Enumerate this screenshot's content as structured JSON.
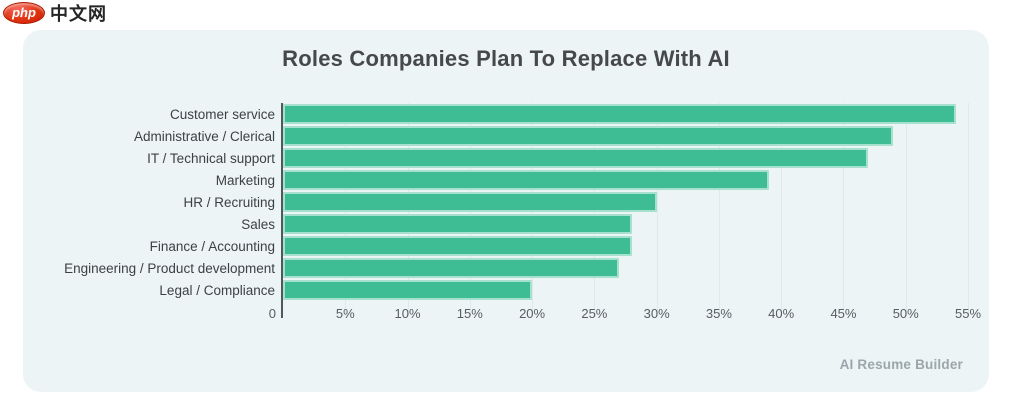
{
  "logo": {
    "badge": "php",
    "text": "中文网"
  },
  "chart_data": {
    "type": "bar",
    "orientation": "horizontal",
    "title": "Roles Companies Plan To Replace With AI",
    "categories": [
      "Customer service",
      "Administrative / Clerical",
      "IT / Technical support",
      "Marketing",
      "HR / Recruiting",
      "Sales",
      "Finance / Accounting",
      "Engineering / Product development",
      "Legal / Compliance"
    ],
    "values": [
      54,
      49,
      47,
      39,
      30,
      28,
      28,
      27,
      20
    ],
    "unit": "%",
    "xlabel": "",
    "ylabel": "",
    "xlim": [
      0,
      55
    ],
    "x_ticks": [
      "0",
      "5%",
      "10%",
      "15%",
      "20%",
      "25%",
      "30%",
      "35%",
      "40%",
      "45%",
      "50%",
      "55%"
    ],
    "grid": true,
    "legend": "none",
    "bar_color": "#3ebd95",
    "bar_border_color": "#a6e1cd",
    "background_color": "#ecf4f5"
  },
  "footer": {
    "attribution": "AI Resume Builder"
  }
}
